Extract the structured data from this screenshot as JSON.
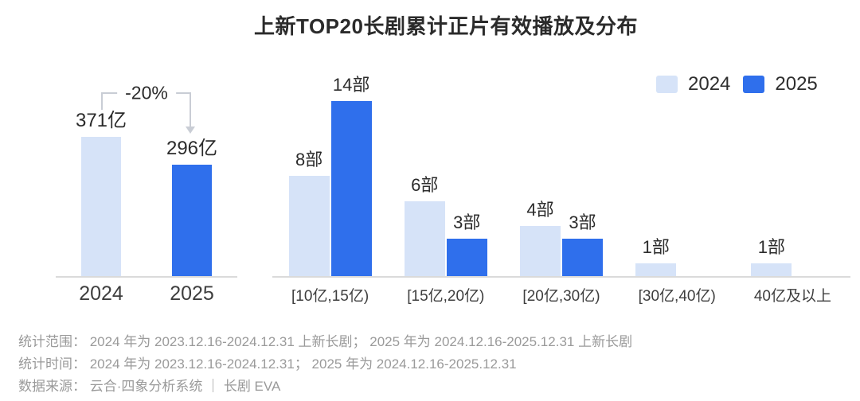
{
  "title": "上新TOP20长剧累计正片有效播放及分布",
  "colors": {
    "year2024": "#d6e3f8",
    "year2025": "#2f6fec",
    "axis_line": "#dadada",
    "annotation_line": "#c9cdd5",
    "text_dark": "#2b2b2b",
    "footer_text": "#9a9a9a"
  },
  "legend": [
    {
      "label": "2024",
      "color": "#d6e3f8"
    },
    {
      "label": "2025",
      "color": "#2f6fec"
    }
  ],
  "chart_data": [
    {
      "id": "total-plays",
      "type": "bar",
      "title": "累计正片有效播放",
      "unit": "亿",
      "categories": [
        "2024",
        "2025"
      ],
      "values": [
        371,
        296
      ],
      "value_labels": [
        "371亿",
        "296亿"
      ],
      "colors": [
        "#d6e3f8",
        "#2f6fec"
      ],
      "ylim": [
        0,
        400
      ],
      "annotation": {
        "label": "-20%"
      }
    },
    {
      "id": "distribution",
      "type": "bar",
      "title": "播放量区间分布",
      "unit": "部",
      "categories": [
        "[10亿,15亿)",
        "[15亿,20亿)",
        "[20亿,30亿)",
        "[30亿,40亿)",
        "40亿及以上"
      ],
      "series": [
        {
          "name": "2024",
          "color": "#d6e3f8",
          "values": [
            8,
            6,
            4,
            1,
            1
          ],
          "value_labels": [
            "8部",
            "6部",
            "4部",
            "1部",
            "1部"
          ]
        },
        {
          "name": "2025",
          "color": "#2f6fec",
          "values": [
            14,
            3,
            3,
            null,
            null
          ],
          "value_labels": [
            "14部",
            "3部",
            "3部",
            null,
            null
          ]
        }
      ],
      "ylim": [
        0,
        15
      ],
      "legend_position": "top-right",
      "grid": false
    }
  ],
  "footer": {
    "lines": [
      "统计范围： 2024 年为 2023.12.16-2024.12.31 上新长剧； 2025 年为 2024.12.16-2025.12.31 上新长剧",
      "统计时间： 2024 年为 2023.12.16-2024.12.31； 2025 年为 2024.12.16-2025.12.31",
      "数据来源： 云合·四象分析系统 ｜ 长剧 EVA"
    ]
  }
}
